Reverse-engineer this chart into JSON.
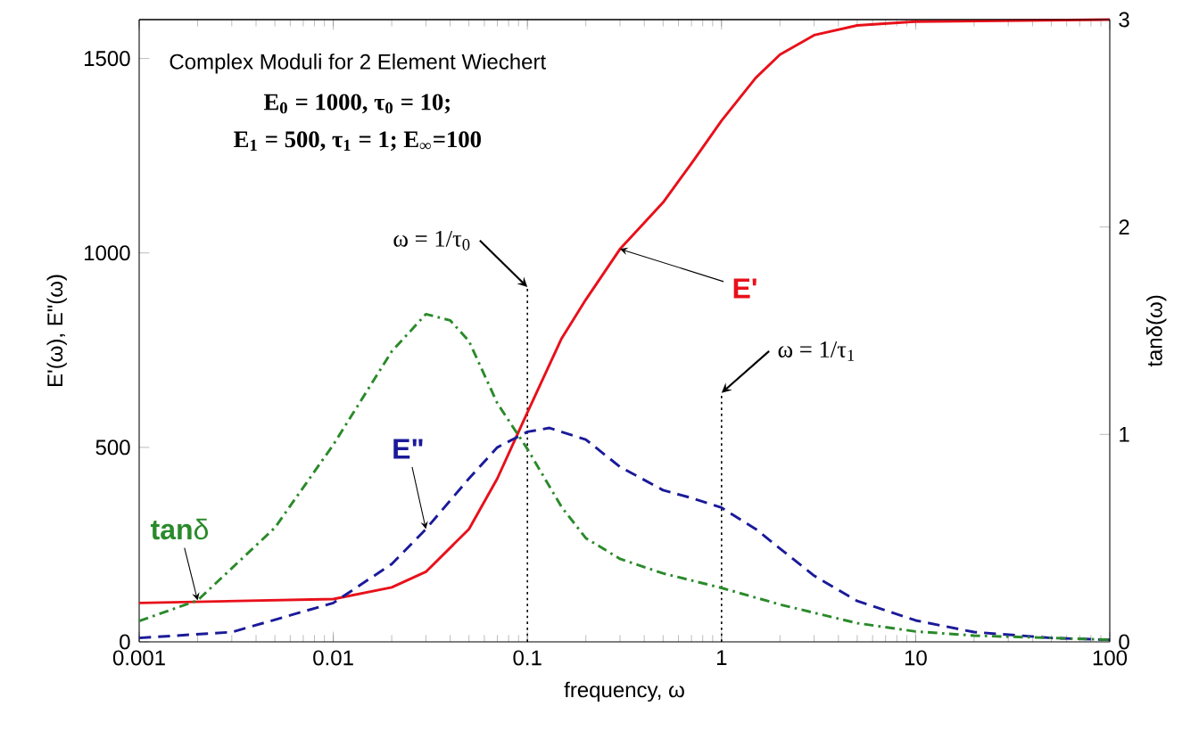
{
  "chart_data": {
    "type": "line",
    "title": "Complex Moduli for 2 Element Wiechert",
    "subtitle": "**E$_{0}$ = 1000, τ$_{0}$ = 10;**",
    "annotations": [
      "**E$_{1}$ = 500, τ$_{1}$ = 1; E$_{∞}$=100**"
    ],
    "xlabel": "frequency, ω",
    "ylabel": "E'(ω), E\"(ω)",
    "y2label": "tanδ(ω)",
    "log": "x",
    "grid": false,
    "xlim": [
      0.001,
      100
    ],
    "xticks": [
      0.001,
      0.01,
      0.1,
      1,
      10,
      100
    ],
    "ylim": [
      0,
      1600
    ],
    "yticks": [
      0,
      500,
      1000,
      1500
    ],
    "y2lim": [
      0,
      3
    ],
    "y2ticks": [
      0,
      1,
      2,
      3
    ],
    "series": [
      {
        "name": "**E'**",
        "color": "#e8101a",
        "line_style": "solid",
        "x": [
          0.001,
          0.01,
          0.02,
          0.03,
          0.05,
          0.07,
          0.1,
          0.15,
          0.2,
          0.3,
          0.5,
          0.7,
          1,
          1.5,
          2,
          3,
          5,
          10,
          100
        ],
        "values": [
          100,
          110,
          140,
          180,
          290,
          420,
          590,
          780,
          880,
          1010,
          1130,
          1230,
          1340,
          1450,
          1510,
          1560,
          1585,
          1595,
          1600
        ]
      },
      {
        "name": "**E\"**",
        "color": "#1a1a9a",
        "line_style": "dashed",
        "x": [
          0.001,
          0.003,
          0.01,
          0.02,
          0.03,
          0.05,
          0.07,
          0.1,
          0.13,
          0.2,
          0.3,
          0.5,
          0.7,
          1,
          1.5,
          2,
          3,
          5,
          10,
          20,
          50,
          100
        ],
        "values": [
          10,
          25,
          100,
          200,
          290,
          420,
          500,
          540,
          550,
          520,
          450,
          390,
          370,
          345,
          290,
          240,
          170,
          105,
          55,
          25,
          10,
          5
        ]
      },
      {
        "name": "**tan**δ",
        "color": "#2a8a2a",
        "line_style": "dashdot",
        "axis": "y2",
        "x": [
          0.001,
          0.002,
          0.005,
          0.01,
          0.02,
          0.03,
          0.04,
          0.05,
          0.07,
          0.1,
          0.15,
          0.2,
          0.3,
          0.5,
          1,
          2,
          5,
          10,
          20,
          100
        ],
        "values": [
          0.1,
          0.2,
          0.55,
          0.95,
          1.4,
          1.58,
          1.55,
          1.45,
          1.15,
          0.93,
          0.65,
          0.5,
          0.4,
          0.33,
          0.26,
          0.18,
          0.09,
          0.05,
          0.03,
          0.01
        ]
      }
    ],
    "ref_lines": [
      {
        "axis": "x",
        "value": 0.1,
        "label": "ω = 1/τ$_{0}$",
        "line_style": "dotted"
      },
      {
        "axis": "x",
        "value": 1,
        "label": "ω = 1/τ$_{1}$",
        "line_style": "dotted"
      }
    ]
  }
}
